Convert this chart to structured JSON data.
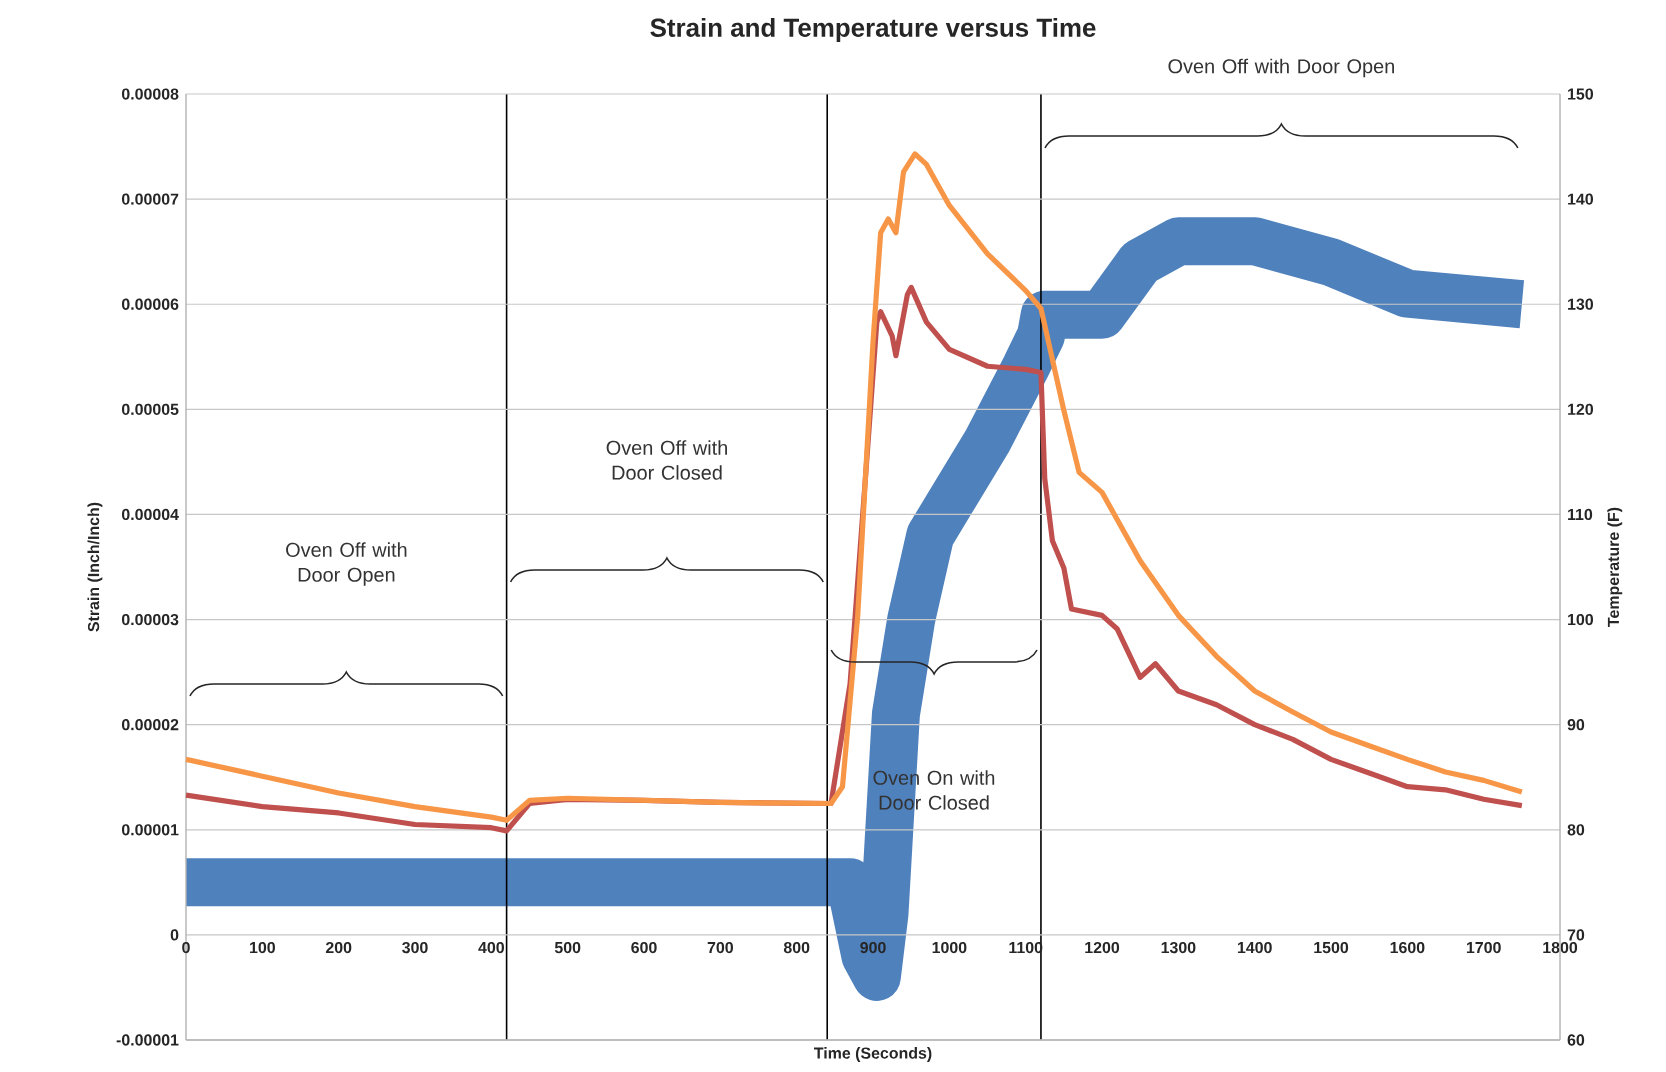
{
  "chart_data": {
    "type": "line",
    "title": "Strain and Temperature versus Time",
    "xlabel": "Time (Seconds)",
    "ylabel": "Strain (Inch/Inch)",
    "y2label": "Temperature (F)",
    "xlim": [
      0,
      1800
    ],
    "xticks": [
      0,
      100,
      200,
      300,
      400,
      500,
      600,
      700,
      800,
      900,
      1000,
      1100,
      1200,
      1300,
      1400,
      1500,
      1600,
      1700,
      1800
    ],
    "ylim": [
      -1e-05,
      8e-05
    ],
    "yticks": [
      {
        "value": -1e-05,
        "label": "-0.00001"
      },
      {
        "value": 0,
        "label": "0"
      },
      {
        "value": 1e-05,
        "label": "0.00001"
      },
      {
        "value": 2e-05,
        "label": "0.00002"
      },
      {
        "value": 3e-05,
        "label": "0.00003"
      },
      {
        "value": 4e-05,
        "label": "0.00004"
      },
      {
        "value": 5e-05,
        "label": "0.00005"
      },
      {
        "value": 6e-05,
        "label": "0.00006"
      },
      {
        "value": 7e-05,
        "label": "0.00007"
      },
      {
        "value": 8e-05,
        "label": "0.00008"
      }
    ],
    "y2lim": [
      60,
      150
    ],
    "y2ticks": [
      60,
      70,
      80,
      90,
      100,
      110,
      120,
      130,
      140,
      150
    ],
    "grid": "y",
    "series": [
      {
        "color": "#4f81bd",
        "x": [
          0,
          420,
          840,
          870,
          890,
          905,
          915,
          930,
          950,
          975,
          1000,
          1050,
          1100,
          1120,
          1125,
          1200,
          1250,
          1300,
          1400,
          1500,
          1600,
          1750
        ],
        "values": [
          5e-06,
          5e-06,
          5e-06,
          5e-06,
          -2e-06,
          -4e-06,
          2e-06,
          2.1e-05,
          3e-05,
          3.8e-05,
          4.1e-05,
          4.7e-05,
          5.4e-05,
          5.7e-05,
          5.9e-05,
          5.9e-05,
          6.4e-05,
          6.6e-05,
          6.6e-05,
          6.4e-05,
          6.1e-05,
          6e-05
        ]
      },
      {
        "color": "#c0504d",
        "axis": "y2",
        "x": [
          0,
          100,
          200,
          300,
          400,
          420,
          450,
          500,
          600,
          700,
          845,
          870,
          890,
          905,
          910,
          925,
          930,
          945,
          950,
          970,
          1000,
          1050,
          1100,
          1120,
          1125,
          1135,
          1150,
          1160,
          1200,
          1220,
          1250,
          1270,
          1300,
          1350,
          1400,
          1450,
          1500,
          1550,
          1600,
          1650,
          1700,
          1750
        ],
        "values": [
          83.3,
          82.2,
          81.6,
          80.5,
          80.2,
          79.9,
          82.5,
          82.9,
          82.8,
          82.6,
          82.5,
          93.9,
          113.4,
          128.3,
          129.3,
          127.0,
          125.1,
          130.9,
          131.6,
          128.3,
          125.7,
          124.1,
          123.8,
          123.5,
          113.4,
          107.5,
          104.9,
          101.0,
          100.4,
          99.1,
          94.5,
          95.8,
          93.2,
          91.9,
          90.0,
          88.6,
          86.7,
          85.4,
          84.1,
          83.8,
          82.9,
          82.3
        ]
      },
      {
        "color": "#f79646",
        "axis": "y2",
        "x": [
          0,
          100,
          200,
          300,
          400,
          420,
          450,
          500,
          600,
          700,
          845,
          860,
          880,
          900,
          910,
          920,
          930,
          940,
          955,
          970,
          1000,
          1050,
          1100,
          1120,
          1150,
          1170,
          1200,
          1250,
          1300,
          1350,
          1400,
          1450,
          1500,
          1550,
          1600,
          1650,
          1700,
          1750
        ],
        "values": [
          86.7,
          85.1,
          83.5,
          82.2,
          81.2,
          80.9,
          82.8,
          83.0,
          82.8,
          82.6,
          82.5,
          84.1,
          100.4,
          126.4,
          136.8,
          138.1,
          136.8,
          142.6,
          144.3,
          143.3,
          139.4,
          134.8,
          131.3,
          129.6,
          119.9,
          114.0,
          112.1,
          105.6,
          100.4,
          96.5,
          93.2,
          91.2,
          89.3,
          88.0,
          86.7,
          85.5,
          84.7,
          83.6
        ]
      }
    ],
    "ref_lines": [
      {
        "axis": "x",
        "value": 420
      },
      {
        "axis": "x",
        "value": 840
      },
      {
        "axis": "x",
        "value": 1120
      }
    ],
    "annotations": [
      "Oven Off with Door Open",
      "Oven Off with Door Closed",
      "Oven On with Door Closed",
      "Oven Off with Door Open"
    ]
  }
}
